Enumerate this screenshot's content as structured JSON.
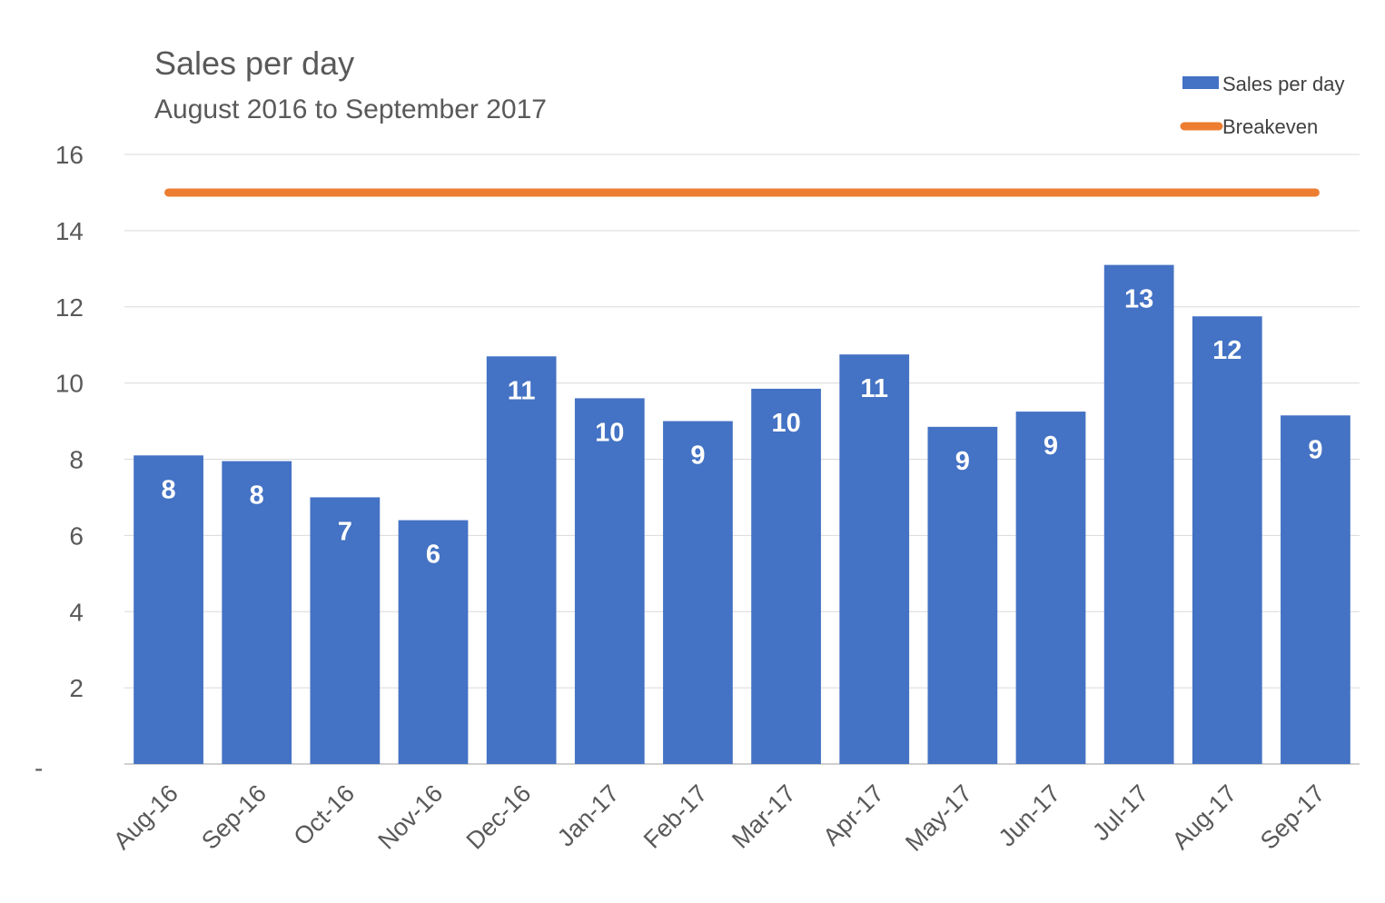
{
  "chart_data": {
    "type": "bar",
    "title": "Sales per day",
    "subtitle": "August 2016 to September 2017",
    "categories": [
      "Aug-16",
      "Sep-16",
      "Oct-16",
      "Nov-16",
      "Dec-16",
      "Jan-17",
      "Feb-17",
      "Mar-17",
      "Apr-17",
      "May-17",
      "Jun-17",
      "Jul-17",
      "Aug-17",
      "Sep-17"
    ],
    "series": [
      {
        "name": "Sales per day",
        "type": "bar",
        "color": "#4472C4",
        "values": [
          8.1,
          7.95,
          7.0,
          6.4,
          10.7,
          9.6,
          9.0,
          9.85,
          10.75,
          8.85,
          9.25,
          13.1,
          11.75,
          9.15
        ],
        "data_labels": [
          "8",
          "8",
          "7",
          "6",
          "11",
          "10",
          "9",
          "10",
          "11",
          "9",
          "9",
          "13",
          "12",
          "9"
        ]
      },
      {
        "name": "Breakeven",
        "type": "line",
        "color": "#ED7D31",
        "values": [
          15,
          15,
          15,
          15,
          15,
          15,
          15,
          15,
          15,
          15,
          15,
          15,
          15,
          15
        ]
      }
    ],
    "ylim": [
      0,
      16
    ],
    "yticks": [
      0,
      2,
      4,
      6,
      8,
      10,
      12,
      14,
      16
    ],
    "ytick_labels": [
      "-",
      "2",
      "4",
      "6",
      "8",
      "10",
      "12",
      "14",
      "16"
    ],
    "grid": true,
    "legend_position": "top-right",
    "xlabel": "",
    "ylabel": ""
  }
}
